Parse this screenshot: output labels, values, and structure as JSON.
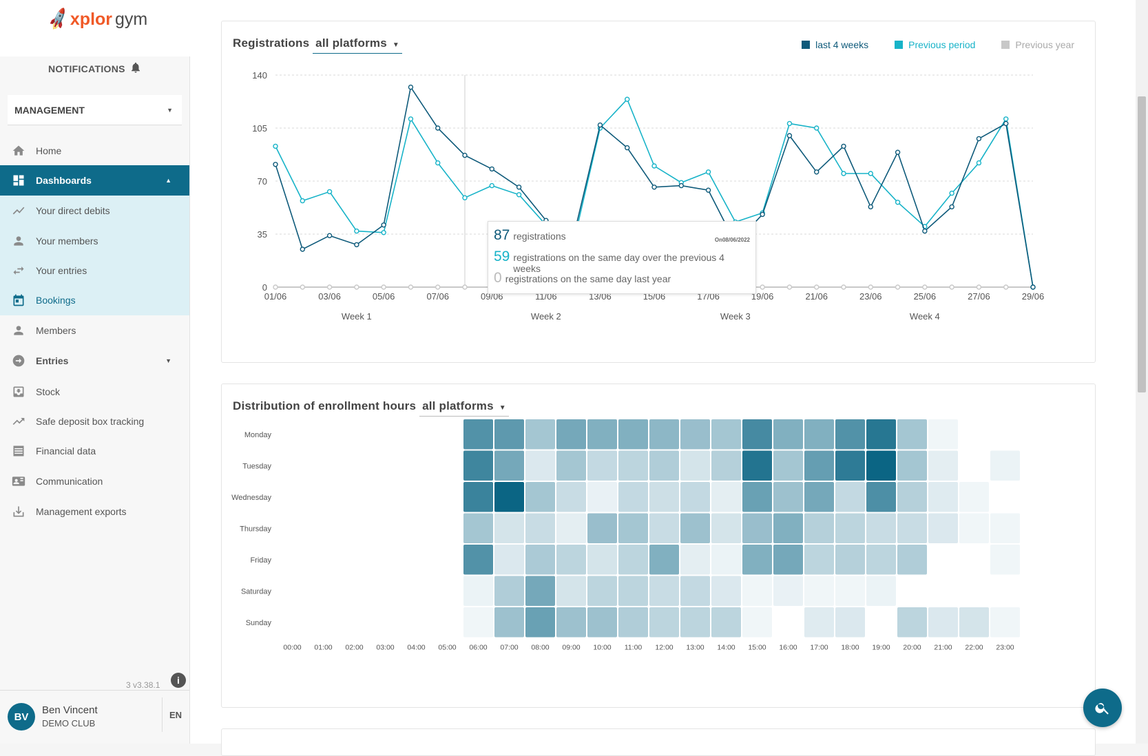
{
  "brand": {
    "name_x": "xplor",
    "name_gym": "gym"
  },
  "notifications_label": "NOTIFICATIONS",
  "context_select": {
    "value": "MANAGEMENT"
  },
  "nav": {
    "home": "Home",
    "dashboards": "Dashboards",
    "direct_debits": "Your direct debits",
    "members_sub": "Your members",
    "entries_sub": "Your entries",
    "bookings": "Bookings",
    "members": "Members",
    "entries": "Entries",
    "stock": "Stock",
    "safe_deposit": "Safe deposit box tracking",
    "financial": "Financial data",
    "communication": "Communication",
    "exports": "Management exports"
  },
  "version": "3 v3.38.1",
  "user": {
    "initials": "BV",
    "name": "Ben Vincent",
    "club": "DEMO CLUB",
    "lang": "EN"
  },
  "registrations_card": {
    "title": "Registrations",
    "platform_select": "all platforms",
    "legend": [
      {
        "label": "last 4 weeks",
        "color": "#0e5a7a"
      },
      {
        "label": "Previous period",
        "color": "#17b3c8"
      },
      {
        "label": "Previous year",
        "color": "#c8c8c8"
      }
    ],
    "tooltip": {
      "date": "On08/06/2022",
      "current_value": "87",
      "current_text": "registrations",
      "prev_value": "59",
      "prev_text": "registrations on the same day over the previous 4 weeks",
      "year_value": "0",
      "year_text": "registrations on the same day last year"
    }
  },
  "distribution_card": {
    "title": "Distribution of enrollment hours",
    "platform_select": "all platforms"
  },
  "chart_data": [
    {
      "type": "line",
      "title": "Registrations all platforms",
      "ylim": [
        0,
        140
      ],
      "yticks": [
        0,
        35,
        70,
        105,
        140
      ],
      "x": [
        "01/06",
        "02/06",
        "03/06",
        "04/06",
        "05/06",
        "06/06",
        "07/06",
        "08/06",
        "09/06",
        "10/06",
        "11/06",
        "12/06",
        "13/06",
        "14/06",
        "15/06",
        "16/06",
        "17/06",
        "18/06",
        "19/06",
        "20/06",
        "21/06",
        "22/06",
        "23/06",
        "24/06",
        "25/06",
        "26/06",
        "27/06",
        "28/06",
        "29/06"
      ],
      "xtick_labels": [
        "01/06",
        "03/06",
        "05/06",
        "07/06",
        "09/06",
        "11/06",
        "13/06",
        "15/06",
        "17/06",
        "19/06",
        "21/06",
        "23/06",
        "25/06",
        "27/06",
        "29/06"
      ],
      "week_labels": [
        "Week 1",
        "Week 2",
        "Week 3",
        "Week 4"
      ],
      "series": [
        {
          "name": "last 4 weeks",
          "color": "#0e5a7a",
          "values": [
            81,
            25,
            34,
            28,
            41,
            132,
            105,
            87,
            78,
            66,
            44,
            32,
            107,
            92,
            66,
            67,
            64,
            29,
            48,
            100,
            76,
            93,
            53,
            89,
            37,
            53,
            98,
            108,
            0
          ]
        },
        {
          "name": "Previous period",
          "color": "#17b3c8",
          "values": [
            93,
            57,
            63,
            37,
            36,
            111,
            82,
            59,
            67,
            61,
            41,
            28,
            105,
            124,
            80,
            69,
            76,
            43,
            49,
            108,
            105,
            75,
            75,
            56,
            40,
            62,
            82,
            111,
            0
          ]
        },
        {
          "name": "Previous year",
          "color": "#c8c8c8",
          "values": [
            0,
            0,
            0,
            0,
            0,
            0,
            0,
            0,
            0,
            0,
            0,
            0,
            0,
            0,
            0,
            0,
            0,
            0,
            0,
            0,
            0,
            0,
            0,
            0,
            0,
            0,
            0,
            0,
            0
          ]
        }
      ]
    },
    {
      "type": "heatmap",
      "title": "Distribution of enrollment hours all platforms",
      "rows": [
        "Monday",
        "Tuesday",
        "Wednesday",
        "Thursday",
        "Friday",
        "Saturday",
        "Sunday"
      ],
      "columns": [
        "00:00",
        "01:00",
        "02:00",
        "03:00",
        "04:00",
        "05:00",
        "06:00",
        "07:00",
        "08:00",
        "09:00",
        "10:00",
        "11:00",
        "12:00",
        "13:00",
        "14:00",
        "15:00",
        "16:00",
        "17:00",
        "18:00",
        "19:00",
        "20:00",
        "21:00",
        "22:00",
        "23:00"
      ],
      "values": [
        [
          0,
          0,
          0,
          0,
          0,
          0,
          0.7,
          0.65,
          0.35,
          0.55,
          0.5,
          0.5,
          0.45,
          0.4,
          0.35,
          0.75,
          0.5,
          0.5,
          0.7,
          0.88,
          0.35,
          0.03,
          0,
          0
        ],
        [
          0,
          0,
          0,
          0,
          0,
          0,
          0.78,
          0.55,
          0.12,
          0.35,
          0.22,
          0.25,
          0.3,
          0.15,
          0.28,
          0.9,
          0.35,
          0.62,
          0.85,
          1.0,
          0.35,
          0.08,
          0,
          0.05
        ],
        [
          0,
          0,
          0,
          0,
          0,
          0,
          0.8,
          1.0,
          0.35,
          0.2,
          0.06,
          0.22,
          0.18,
          0.22,
          0.08,
          0.6,
          0.38,
          0.55,
          0.22,
          0.72,
          0.28,
          0.1,
          0.03,
          0
        ],
        [
          0,
          0,
          0,
          0,
          0,
          0,
          0.35,
          0.15,
          0.2,
          0.08,
          0.4,
          0.35,
          0.2,
          0.38,
          0.15,
          0.4,
          0.5,
          0.28,
          0.25,
          0.2,
          0.2,
          0.12,
          0.03,
          0.03
        ],
        [
          0,
          0,
          0,
          0,
          0,
          0,
          0.7,
          0.12,
          0.32,
          0.25,
          0.15,
          0.25,
          0.5,
          0.08,
          0.05,
          0.5,
          0.55,
          0.25,
          0.28,
          0.25,
          0.3,
          0,
          0,
          0.03
        ],
        [
          0,
          0,
          0,
          0,
          0,
          0,
          0.05,
          0.3,
          0.55,
          0.15,
          0.25,
          0.25,
          0.2,
          0.22,
          0.12,
          0.03,
          0.06,
          0.03,
          0.03,
          0.05,
          0,
          0,
          0,
          0
        ],
        [
          0,
          0,
          0,
          0,
          0,
          0,
          0.03,
          0.38,
          0.6,
          0.38,
          0.38,
          0.3,
          0.25,
          0.25,
          0.25,
          0.03,
          0,
          0.1,
          0.12,
          0,
          0.25,
          0.12,
          0.15,
          0.03
        ]
      ],
      "color_low": "#f7fafc",
      "color_high": "#0b6584"
    }
  ]
}
